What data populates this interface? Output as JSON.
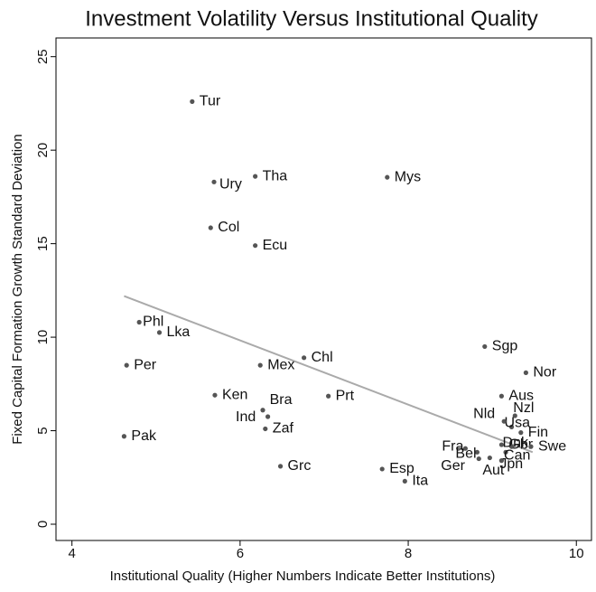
{
  "chart_data": {
    "type": "scatter",
    "title": "Investment Volatility Versus Institutional Quality",
    "x_label": "Institutional Quality (Higher Numbers Indicate Better Institutions)",
    "y_label": "Fixed Capital Formation Growth Standard Deviation",
    "labels": [
      "Tur",
      "Ury",
      "Tha",
      "Mys",
      "Col",
      "Ecu",
      "Phl",
      "Lka",
      "Per",
      "Mex",
      "Chl",
      "Sgp",
      "Nor",
      "Aus",
      "Ken",
      "Bra",
      "Prt",
      "Ind",
      "Zaf",
      "Pak",
      "Grc",
      "Esp",
      "Ita",
      "Nzl",
      "Usa",
      "Nld",
      "Fin",
      "Gbr",
      "Dnk",
      "Fra",
      "Bel",
      "Can",
      "Swe",
      "Ger",
      "Jpn",
      "Aut"
    ],
    "x": [
      5.43,
      5.69,
      6.18,
      7.75,
      5.65,
      6.18,
      4.8,
      5.04,
      4.65,
      6.24,
      6.76,
      8.91,
      9.4,
      9.11,
      5.7,
      6.33,
      7.05,
      6.27,
      6.3,
      4.62,
      6.48,
      7.69,
      7.96,
      9.27,
      9.23,
      9.14,
      9.34,
      9.11,
      9.23,
      8.68,
      8.82,
      9.16,
      9.46,
      8.84,
      9.11,
      8.97
    ],
    "y": [
      22.6,
      18.3,
      18.6,
      18.55,
      15.85,
      14.9,
      10.8,
      10.25,
      8.5,
      8.5,
      8.9,
      9.5,
      8.1,
      6.85,
      6.9,
      5.75,
      6.85,
      6.1,
      5.1,
      4.7,
      3.1,
      2.95,
      2.3,
      5.8,
      5.2,
      5.5,
      4.9,
      4.25,
      4.15,
      4.05,
      3.85,
      3.85,
      4.15,
      3.5,
      3.4,
      3.55
    ],
    "color": "#555555",
    "fit_line": {
      "x": [
        4.62,
        9.48
      ],
      "y": [
        12.2,
        3.85
      ],
      "color": "#aaaaaa"
    },
    "xlim": [
      3.81,
      10.18
    ],
    "ylim": [
      -0.87,
      26.0
    ],
    "xticks": [
      4,
      6,
      8,
      10
    ],
    "yticks": [
      0,
      5,
      10,
      15,
      20,
      25
    ]
  }
}
